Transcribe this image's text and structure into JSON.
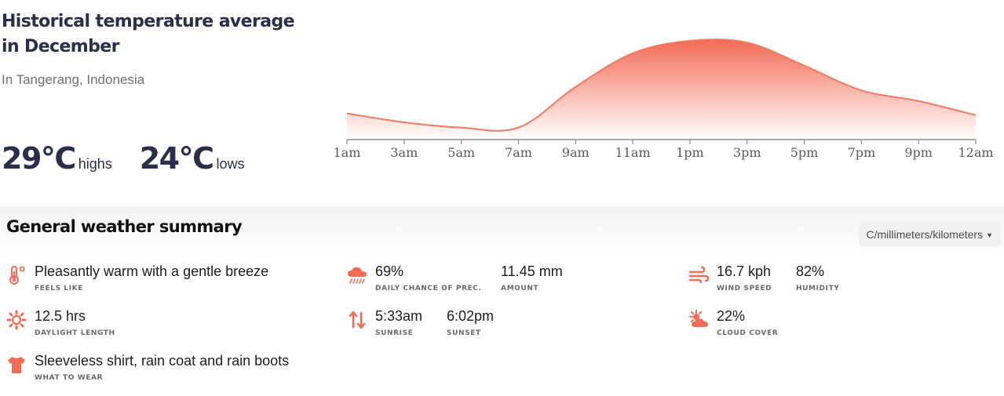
{
  "header": {
    "title": "Historical temperature average in December",
    "location": "In Tangerang, Indonesia",
    "high_value": "29°C",
    "high_caption": "highs",
    "low_value": "24°C",
    "low_caption": "lows"
  },
  "chart_data": {
    "type": "area",
    "x": [
      "1am",
      "3am",
      "5am",
      "7am",
      "9am",
      "11am",
      "1pm",
      "3pm",
      "5pm",
      "7pm",
      "9pm",
      "12am"
    ],
    "series": [
      {
        "values": [
          24.9,
          24.4,
          24.1,
          24.1,
          26.4,
          28.3,
          29.0,
          28.9,
          27.6,
          26.2,
          25.6,
          24.8
        ]
      }
    ],
    "ylim": [
      24,
      29
    ],
    "grid": false,
    "colors": {
      "line": "#f27a62",
      "fill_top": "#f26b55",
      "fill_bottom": "#ffffff",
      "axis": "#8a8a8a"
    }
  },
  "summary": {
    "title": "General weather summary",
    "unit_selector": "C/millimeters/kilometers",
    "feels_like": {
      "value": "Pleasantly warm with a gentle breeze",
      "label": "FEELS LIKE",
      "icon": "thermometer-icon"
    },
    "daylight": {
      "value": "12.5 hrs",
      "label": "DAYLIGHT LENGTH",
      "icon": "sun-gear-icon"
    },
    "what_to_wear": {
      "value": "Sleeveless shirt, rain coat and rain boots",
      "label": "WHAT TO WEAR",
      "icon": "shirt-icon"
    },
    "precipitation": {
      "chance": "69%",
      "chance_label": "DAILY CHANCE OF PREC.",
      "amount": "11.45 mm",
      "amount_label": "AMOUNT",
      "icon": "rain-cloud-icon"
    },
    "sun": {
      "sunrise": "5:33am",
      "sunrise_label": "SUNRISE",
      "sunset": "6:02pm",
      "sunset_label": "SUNSET",
      "icon": "sunrise-sunset-arrows-icon"
    },
    "wind": {
      "speed": "16.7 kph",
      "speed_label": "WIND SPEED",
      "humidity": "82%",
      "humidity_label": "HUMIDITY",
      "icon": "wind-icon"
    },
    "cloud": {
      "cover": "22%",
      "cover_label": "CLOUD COVER",
      "icon": "partly-cloudy-icon"
    }
  },
  "colors": {
    "accent": "#f26b55",
    "title": "#2b2f4a"
  }
}
